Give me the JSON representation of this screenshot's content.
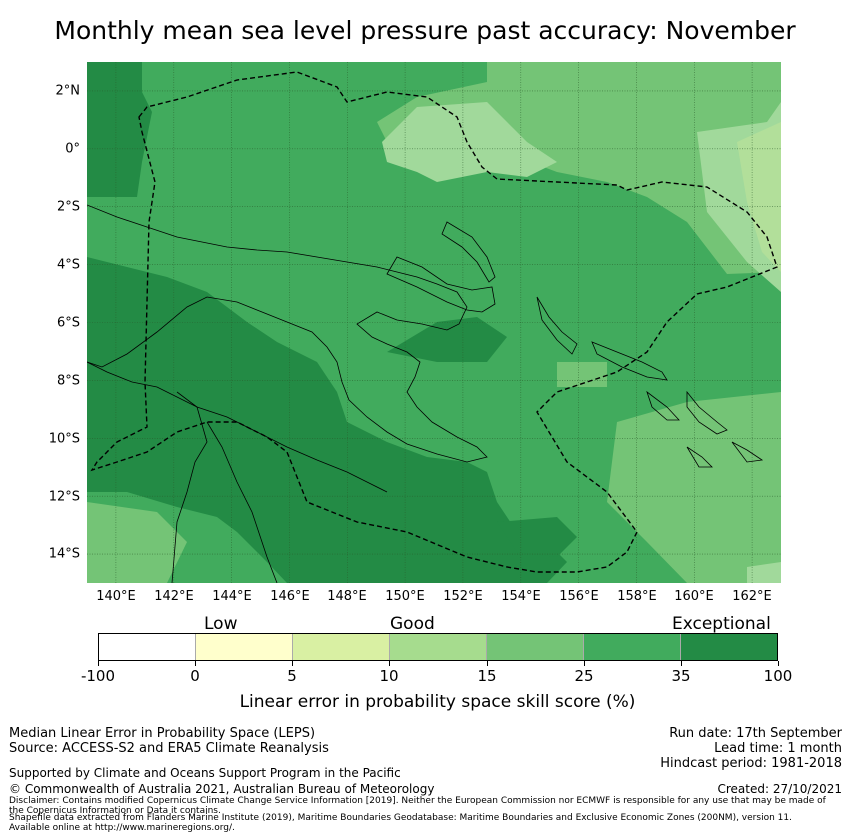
{
  "title": "Monthly mean sea level pressure past accuracy: November",
  "map": {
    "region": "Papua New Guinea and surrounding ocean",
    "lat_labels": [
      "2°N",
      "0°",
      "2°S",
      "4°S",
      "6°S",
      "8°S",
      "10°S",
      "12°S",
      "14°S"
    ],
    "lon_labels": [
      "140°E",
      "142°E",
      "144°E",
      "146°E",
      "148°E",
      "150°E",
      "152°E",
      "154°E",
      "156°E",
      "158°E",
      "160°E",
      "162°E"
    ],
    "lat_range": [
      -15,
      3
    ],
    "lon_range": [
      139,
      163
    ],
    "boundary_style": "dashed EEZ outline",
    "colors": {
      "c35_100": "#238b45",
      "c25_35": "#41ab5d",
      "c15_25": "#74c476",
      "c10_15": "#a1d99b",
      "c5_10": "#d9f0a3",
      "c0_5": "#ffffcc",
      "neg": "#ffffff",
      "coast": "#000000",
      "grid": "#2a5a2a"
    }
  },
  "colorbar": {
    "categories": [
      "Low",
      "Good",
      "Exceptional"
    ],
    "ticks": [
      "-100",
      "0",
      "5",
      "10",
      "15",
      "25",
      "35",
      "100"
    ],
    "bins": [
      "#ffffff",
      "#ffffcc",
      "#d9f0a3",
      "#a6dc8e",
      "#74c476",
      "#41ab5d",
      "#238b45"
    ],
    "label": "Linear error in probability space skill score (%)"
  },
  "info": {
    "left_line1": "Median Linear Error in Probability Space (LEPS)",
    "left_line2": "Source: ACCESS-S2 and ERA5 Climate Reanalysis",
    "support": "Supported by Climate and Oceans Support Program in the Pacific",
    "copyright": "© Commonwealth of Australia 2021, Australian Bureau of Meteorology",
    "run_date": "Run date: 17th September",
    "lead_time": "Lead time: 1 month",
    "hindcast": "Hindcast period: 1981-2018",
    "created": "Created: 27/10/2021",
    "disclaimer1": "Disclaimer: Contains modified Copernicus Climate Change Service Information [2019]. Neither the European Commission nor ECMWF is responsible for any use that may be made of",
    "disclaimer2": "the Copernicus Information or Data it contains.",
    "shapefile1": "Shapefile data extracted from Flanders Marine Institute (2019), Maritime Boundaries Geodatabase: Maritime Boundaries and Exclusive Economic Zones (200NM), version 11.",
    "shapefile2": "Available online at http://www.marineregions.org/."
  }
}
